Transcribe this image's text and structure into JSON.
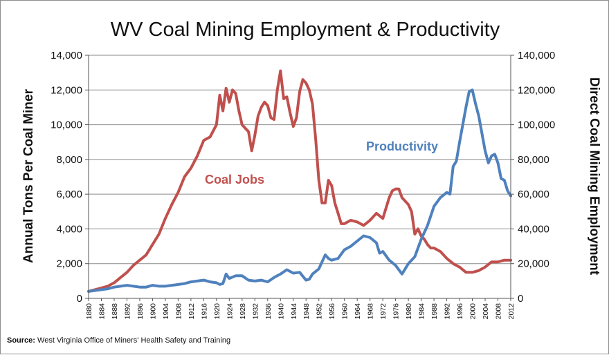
{
  "chart_data": {
    "type": "line",
    "title": "WV Coal Mining Employment & Productivity",
    "ylabel_left": "Annual Tons Per Coal Miner",
    "ylabel_right": "Direct Coal Mining Employment",
    "ylim_left": [
      0,
      14000
    ],
    "ylim_right": [
      0,
      140000
    ],
    "yticks_left": [
      "0",
      "2,000",
      "4,000",
      "6,000",
      "8,000",
      "10,000",
      "12,000",
      "14,000"
    ],
    "yticks_right": [
      "0",
      "20,000",
      "40,000",
      "60,000",
      "80,000",
      "100,000",
      "120,000",
      "140,000"
    ],
    "xlim": [
      1880,
      2012
    ],
    "xticks": [
      "1880",
      "1884",
      "1888",
      "1892",
      "1896",
      "1900",
      "1904",
      "1908",
      "1912",
      "1916",
      "1920",
      "1924",
      "1928",
      "1932",
      "1936",
      "1940",
      "1944",
      "1948",
      "1952",
      "1956",
      "1960",
      "1964",
      "1968",
      "1972",
      "1976",
      "1980",
      "1984",
      "1988",
      "1992",
      "1996",
      "2000",
      "2004",
      "2008",
      "2012"
    ],
    "grid": true,
    "series": [
      {
        "name": "Coal Jobs",
        "axis": "right",
        "color": "#c0504d",
        "x": [
          1880,
          1882,
          1884,
          1886,
          1888,
          1890,
          1892,
          1894,
          1896,
          1898,
          1900,
          1902,
          1904,
          1906,
          1908,
          1910,
          1912,
          1914,
          1916,
          1918,
          1920,
          1921,
          1922,
          1923,
          1924,
          1925,
          1926,
          1927,
          1928,
          1929,
          1930,
          1931,
          1932,
          1933,
          1934,
          1935,
          1936,
          1937,
          1938,
          1939,
          1940,
          1941,
          1942,
          1943,
          1944,
          1945,
          1946,
          1947,
          1948,
          1949,
          1950,
          1951,
          1952,
          1953,
          1954,
          1955,
          1956,
          1957,
          1958,
          1959,
          1960,
          1962,
          1964,
          1966,
          1968,
          1970,
          1972,
          1974,
          1975,
          1976,
          1977,
          1978,
          1979,
          1980,
          1981,
          1982,
          1983,
          1984,
          1985,
          1986,
          1987,
          1988,
          1990,
          1992,
          1994,
          1996,
          1998,
          2000,
          2002,
          2004,
          2006,
          2008,
          2010,
          2012
        ],
        "values": [
          4000,
          5000,
          6000,
          7000,
          9000,
          12000,
          15000,
          19000,
          22000,
          25000,
          31000,
          37000,
          46000,
          54000,
          61000,
          70000,
          75000,
          82000,
          91000,
          93000,
          100000,
          117000,
          108000,
          121000,
          113000,
          120000,
          118000,
          108000,
          100000,
          98000,
          96000,
          85000,
          94000,
          105000,
          110000,
          113000,
          111000,
          104000,
          103000,
          120000,
          131000,
          115000,
          116000,
          107000,
          99000,
          104000,
          119000,
          126000,
          124000,
          120000,
          112000,
          92000,
          68000,
          55000,
          55000,
          68000,
          65000,
          55000,
          49000,
          43000,
          43000,
          45000,
          44000,
          42000,
          45000,
          49000,
          46000,
          58000,
          62000,
          63000,
          63000,
          58000,
          56000,
          54000,
          50000,
          37000,
          40000,
          36000,
          34000,
          31000,
          29000,
          29000,
          27000,
          23000,
          20000,
          18000,
          15000,
          15000,
          16000,
          18000,
          21000,
          21000,
          22000,
          22000
        ]
      },
      {
        "name": "Productivity",
        "axis": "left",
        "color": "#4f81bd",
        "x": [
          1880,
          1882,
          1884,
          1886,
          1888,
          1890,
          1892,
          1894,
          1896,
          1898,
          1900,
          1902,
          1904,
          1906,
          1908,
          1910,
          1912,
          1914,
          1916,
          1918,
          1920,
          1921,
          1922,
          1923,
          1924,
          1926,
          1928,
          1930,
          1932,
          1934,
          1936,
          1938,
          1940,
          1942,
          1944,
          1946,
          1948,
          1949,
          1950,
          1952,
          1954,
          1955,
          1956,
          1958,
          1960,
          1962,
          1964,
          1966,
          1968,
          1970,
          1971,
          1972,
          1974,
          1976,
          1978,
          1980,
          1982,
          1984,
          1986,
          1988,
          1990,
          1992,
          1993,
          1994,
          1995,
          1996,
          1997,
          1998,
          1999,
          2000,
          2001,
          2002,
          2003,
          2004,
          2005,
          2006,
          2007,
          2008,
          2009,
          2010,
          2011,
          2012
        ],
        "values": [
          400,
          450,
          500,
          550,
          650,
          700,
          750,
          700,
          650,
          650,
          750,
          700,
          700,
          750,
          800,
          850,
          950,
          1000,
          1050,
          950,
          900,
          800,
          850,
          1400,
          1150,
          1300,
          1300,
          1050,
          1000,
          1050,
          950,
          1200,
          1400,
          1650,
          1450,
          1500,
          1050,
          1100,
          1400,
          1700,
          2500,
          2300,
          2200,
          2300,
          2800,
          3000,
          3300,
          3600,
          3500,
          3200,
          2600,
          2700,
          2200,
          1900,
          1400,
          2000,
          2400,
          3400,
          4200,
          5300,
          5800,
          6100,
          6000,
          7600,
          7900,
          9000,
          10000,
          11000,
          11900,
          12000,
          11200,
          10500,
          9500,
          8500,
          7800,
          8200,
          8300,
          7800,
          6900,
          6800,
          6200,
          5900
        ]
      }
    ],
    "annotations": [
      {
        "text": "Coal Jobs",
        "color": "#c0504d"
      },
      {
        "text": "Productivity",
        "color": "#4f81bd"
      }
    ],
    "source_label": "Source:",
    "source_text": "West Virginia Office of Miners' Health Safety and Training",
    "colors": {
      "grid": "#8a8a8a",
      "axis": "#555555",
      "background": "#ffffff"
    }
  }
}
